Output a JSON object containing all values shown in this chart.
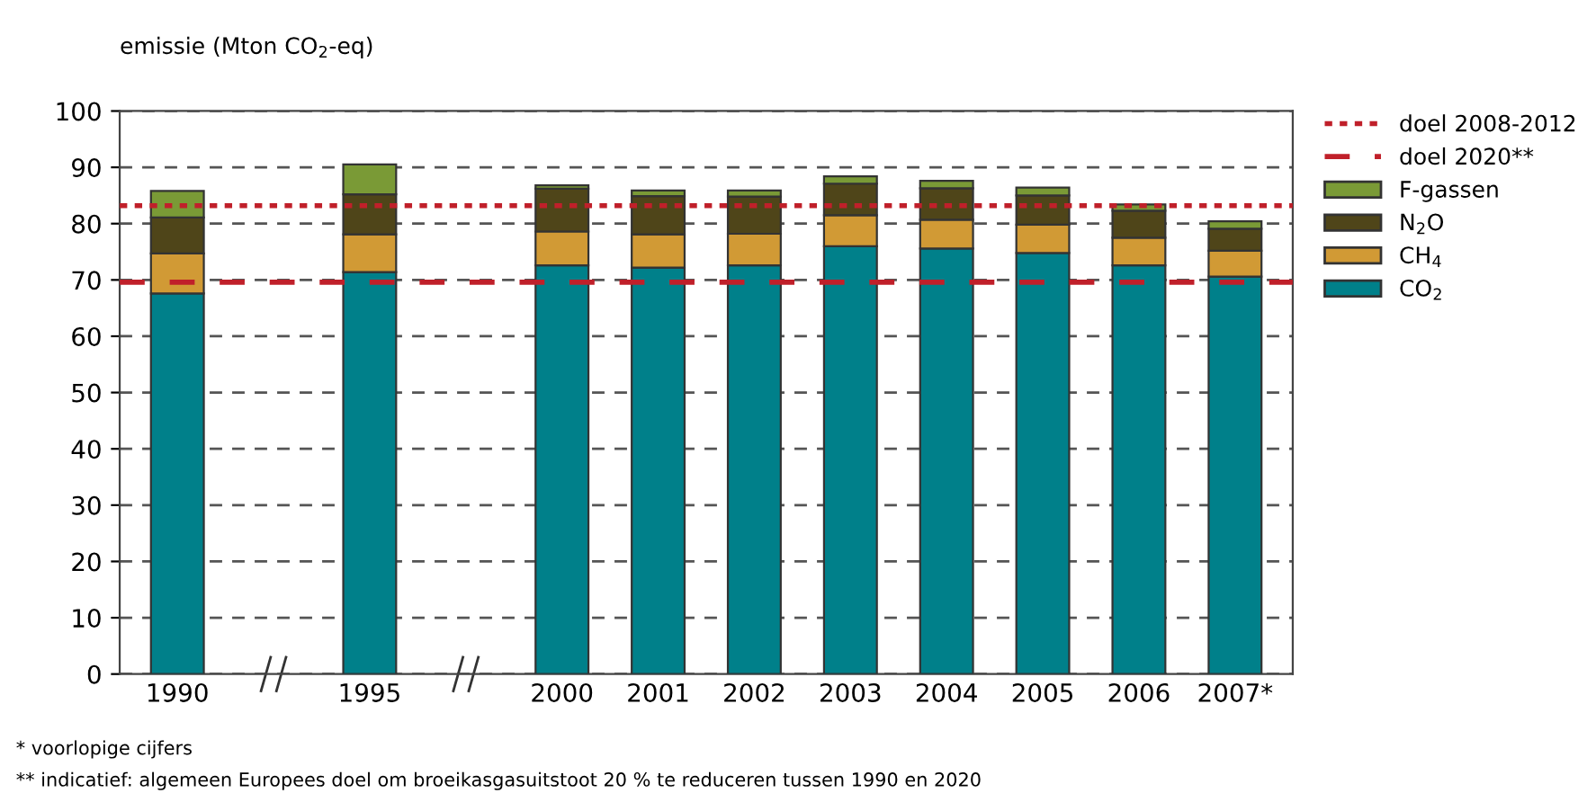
{
  "chart_data": {
    "type": "bar",
    "stacked": true,
    "ylabel": "emissie (Mton CO$_{2}$-eq)",
    "categories": [
      "1990",
      null,
      "1995",
      null,
      "2000",
      "2001",
      "2002",
      "2003",
      "2004",
      "2005",
      "2006",
      "2007*"
    ],
    "series": [
      {
        "name": "CO$_{2}$",
        "color": "#00808a",
        "values": [
          67.6,
          null,
          71.4,
          null,
          72.6,
          72.2,
          72.6,
          76.0,
          75.6,
          74.8,
          72.6,
          70.6
        ]
      },
      {
        "name": "CH$_{4}$",
        "color": "#d19a35",
        "values": [
          7.1,
          null,
          6.7,
          null,
          6.0,
          5.9,
          5.6,
          5.5,
          5.1,
          5.0,
          4.9,
          4.6
        ]
      },
      {
        "name": "N$_{2}$O",
        "color": "#4f4519",
        "values": [
          6.4,
          null,
          7.1,
          null,
          7.6,
          6.8,
          6.6,
          5.6,
          5.6,
          5.2,
          4.8,
          3.9
        ]
      },
      {
        "name": "F-gassen",
        "color": "#7a9a36",
        "values": [
          4.7,
          null,
          5.3,
          null,
          0.6,
          1.0,
          1.1,
          1.3,
          1.3,
          1.4,
          1.1,
          1.3
        ]
      }
    ],
    "ref_lines": [
      {
        "axis": "y",
        "value": 83.2,
        "label": "doel 2008-2012",
        "color": "#c0202a",
        "line_style": "dotted"
      },
      {
        "axis": "y",
        "value": 69.6,
        "label": "doel 2020**",
        "color": "#c0202a",
        "line_style": "dashed"
      }
    ],
    "ylim": [
      0,
      100
    ],
    "yticks": [
      0,
      10,
      20,
      30,
      40,
      50,
      60,
      70,
      80,
      90,
      100
    ],
    "grid": "y",
    "legend": "top right",
    "annotations": [
      "* voorlopige cijfers",
      "** indicatief: algemeen Europees doel om broeikasgasuitstoot 20 % te reduceren tussen 1990 en 2020"
    ]
  }
}
